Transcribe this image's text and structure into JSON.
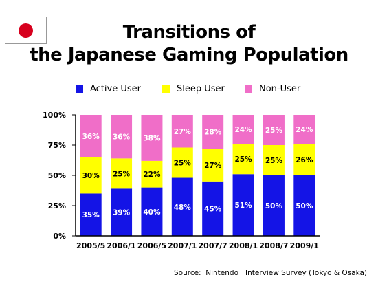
{
  "title_line1": "Transitions of",
  "title_line2": "the Japanese Gaming Population",
  "source": "Source:  Nintendo   Interview Survey (Tokyo & Osaka)",
  "colors": {
    "active": "#1414e6",
    "sleep": "#ffff00",
    "non": "#f06ec8",
    "flag_disc": "#d7001e"
  },
  "chart_data": {
    "type": "bar",
    "stacked": true,
    "categories": [
      "2005/5",
      "2006/1",
      "2006/5",
      "2007/1",
      "2007/7",
      "2008/1",
      "2008/7",
      "2009/1"
    ],
    "series": [
      {
        "name": "Active User",
        "values": [
          35,
          39,
          40,
          48,
          45,
          51,
          50,
          50
        ],
        "labels": [
          "35%",
          "39%",
          "40%",
          "48%",
          "45%",
          "51%",
          "50%",
          "50%"
        ]
      },
      {
        "name": "Sleep User",
        "values": [
          30,
          25,
          22,
          25,
          27,
          25,
          25,
          26
        ],
        "labels": [
          "30%",
          "25%",
          "22%",
          "25%",
          "27%",
          "25%",
          "25%",
          "26%"
        ]
      },
      {
        "name": "Non-User",
        "values": [
          36,
          36,
          38,
          27,
          28,
          24,
          25,
          24
        ],
        "labels": [
          "36%",
          "36%",
          "38%",
          "27%",
          "28%",
          "24%",
          "25%",
          "24%"
        ]
      }
    ],
    "yticks": [
      "0%",
      "25%",
      "50%",
      "75%",
      "100%"
    ],
    "ylim": [
      0,
      100
    ],
    "legend_position": "top",
    "grid": false
  }
}
